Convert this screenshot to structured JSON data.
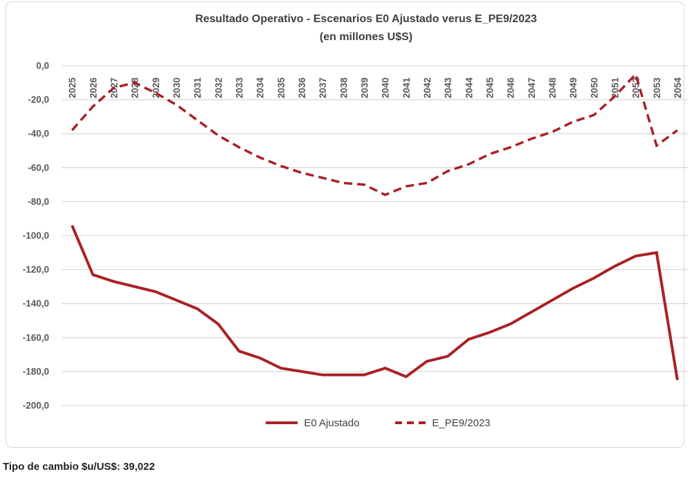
{
  "chart": {
    "title_line1": "Resultado Operativo - Escenarios E0 Ajustado verus E_PE9/2023",
    "title_line2": "(en millones U$S)"
  },
  "legend": {
    "item1_label": "E0 Ajustado",
    "item2_label": "E_PE9/2023"
  },
  "footer": {
    "text": "Tipo de cambio $u/US$: 39,022"
  },
  "colors": {
    "series_red": "#a92125",
    "grid": "#d9d9d9",
    "axis_text": "#595959",
    "title_text": "#3f3f3f",
    "frame_border": "#d6d6d6"
  },
  "chart_data": {
    "type": "line",
    "title": "Resultado Operativo - Escenarios E0 Ajustado verus E_PE9/2023 (en millones U$S)",
    "xlabel": "",
    "ylabel": "",
    "ylim": [
      -200,
      0
    ],
    "grid": true,
    "legend_position": "bottom",
    "categories": [
      "2025",
      "2026",
      "2027",
      "2028",
      "2029",
      "2030",
      "2031",
      "2032",
      "2033",
      "2034",
      "2035",
      "2036",
      "2037",
      "2038",
      "2039",
      "2040",
      "2041",
      "2042",
      "2043",
      "2044",
      "2045",
      "2046",
      "2047",
      "2048",
      "2049",
      "2050",
      "2051",
      "2052",
      "2053",
      "2054"
    ],
    "y_ticks": {
      "values": [
        0,
        -20,
        -40,
        -60,
        -80,
        -100,
        -120,
        -140,
        -160,
        -180,
        -200
      ],
      "labels": [
        "0,0",
        "-20,0",
        "-40,0",
        "-60,0",
        "-80,0",
        "-100,0",
        "-120,0",
        "-140,0",
        "-160,0",
        "-180,0",
        "-200,0"
      ]
    },
    "series": [
      {
        "name": "E0 Ajustado",
        "style": "solid",
        "values": [
          -94,
          -123,
          -127,
          -130,
          -133,
          -138,
          -143,
          -152,
          -168,
          -172,
          -178,
          -180,
          -182,
          -182,
          -182,
          -178,
          -183,
          -174,
          -171,
          -161,
          -157,
          -152,
          -145,
          -138,
          -131,
          -125,
          -118,
          -112,
          -110,
          -185
        ]
      },
      {
        "name": "E_PE9/2023",
        "style": "dashed",
        "values": [
          -38,
          -24,
          -13,
          -10,
          -16,
          -23,
          -32,
          -41,
          -48,
          -54,
          -59,
          -63,
          -66,
          -69,
          -70,
          -76,
          -71,
          -69,
          -62,
          -58,
          -52,
          -48,
          -43,
          -39,
          -33,
          -29,
          -18,
          -5,
          -47,
          -38
        ]
      }
    ]
  }
}
